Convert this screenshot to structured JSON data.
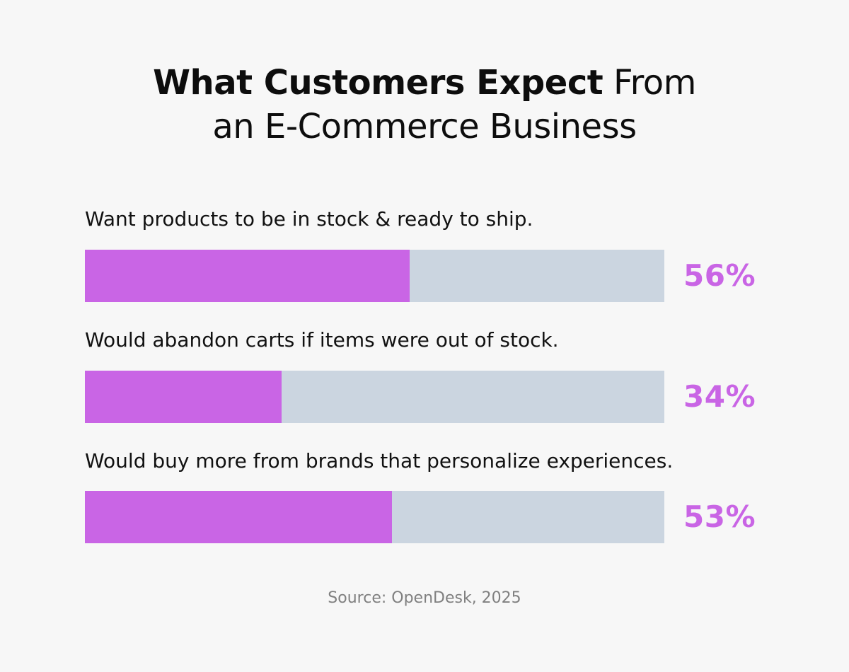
{
  "title": {
    "bold_part": "What Customers Expect",
    "regular_part": " From",
    "line2": "an E-Commerce Business"
  },
  "chart_data": {
    "type": "bar",
    "orientation": "horizontal",
    "title": "What Customers Expect From an E-Commerce Business",
    "categories": [
      "Want products to be in stock & ready to ship.",
      "Would abandon carts if items were out of stock.",
      "Would buy more from brands that personalize experiences."
    ],
    "values": [
      56,
      34,
      53
    ],
    "value_labels": [
      "56%",
      "34%",
      "53%"
    ],
    "xlim": [
      0,
      100
    ],
    "unit": "%",
    "grid": false,
    "legend": "none"
  },
  "colors": {
    "fill": "#c965e5",
    "track": "#cbd5e0",
    "value_text": "#c965e5",
    "background": "#f7f7f7"
  },
  "source": "Source: OpenDesk, 2025"
}
